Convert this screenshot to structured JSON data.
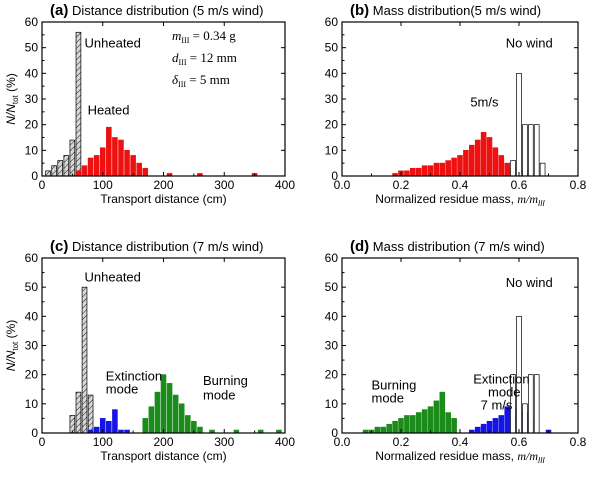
{
  "chart_data": [
    {
      "type": "bar",
      "panel_letter": "(a)",
      "title": "Distance distribution (5 m/s wind)",
      "xlabel": "Transport distance (cm)",
      "ylabel": "N/N_tot (%)",
      "ylabel_main": "N/N",
      "ylabel_sub": "tot",
      "ylabel_tail": " (%)",
      "xlim": [
        0,
        400
      ],
      "ylim": [
        0,
        60
      ],
      "xticks": [
        0,
        100,
        200,
        300,
        400
      ],
      "yticks": [
        0,
        10,
        20,
        30,
        40,
        50,
        60
      ],
      "bar_width": 8,
      "series": [
        {
          "name": "Unheated",
          "style": "hatched",
          "x": [
            10,
            20,
            30,
            40,
            50,
            60
          ],
          "values": [
            2,
            4,
            6,
            8,
            14,
            56
          ]
        },
        {
          "name": "Heated",
          "style": "red",
          "x": [
            60,
            70,
            80,
            90,
            100,
            110,
            120,
            130,
            140,
            150,
            160,
            170,
            210,
            260,
            350
          ],
          "values": [
            2,
            4,
            7,
            8,
            11,
            19,
            15,
            14,
            10,
            8,
            5,
            3,
            1,
            1,
            1
          ]
        }
      ],
      "annotations": [
        {
          "text": "Unheated",
          "x": 70,
          "y": 50,
          "color": "#000000"
        },
        {
          "text": "Heated",
          "x": 75,
          "y": 24,
          "color": "#e41b1b"
        }
      ],
      "params": [
        {
          "main": "m",
          "sub": "III",
          "value": " = 0.34 g"
        },
        {
          "main": "d",
          "sub": "III",
          "value": " = 12 mm"
        },
        {
          "main": "δ",
          "sub": "III",
          "value": " = 5 mm"
        }
      ]
    },
    {
      "type": "bar",
      "panel_letter": "(b)",
      "title": "Mass distribution(5 m/s wind)",
      "xlabel_main": "Normalized residue mass, ",
      "xlabel_italic": "m/m",
      "xlabel_sub": "III",
      "xlim": [
        0,
        0.8
      ],
      "ylim": [
        0,
        60
      ],
      "xticks": [
        0.0,
        0.2,
        0.4,
        0.6,
        0.8
      ],
      "yticks": [
        0,
        10,
        20,
        30,
        40,
        50,
        60
      ],
      "bar_width": 0.0165,
      "series": [
        {
          "name": "5m/s",
          "style": "red",
          "x": [
            0.18,
            0.2,
            0.22,
            0.24,
            0.26,
            0.28,
            0.3,
            0.32,
            0.34,
            0.36,
            0.38,
            0.4,
            0.42,
            0.44,
            0.46,
            0.48,
            0.5,
            0.52,
            0.54,
            0.56,
            0.58,
            0.62,
            0.64
          ],
          "values": [
            1,
            2,
            2,
            3,
            3,
            4,
            4,
            5,
            5,
            6,
            7,
            8,
            10,
            12,
            14,
            17,
            15,
            11,
            8,
            5,
            3,
            2,
            1
          ]
        },
        {
          "name": "No wind",
          "style": "white",
          "x": [
            0.58,
            0.6,
            0.62,
            0.64,
            0.66,
            0.68
          ],
          "values": [
            6,
            40,
            20,
            20,
            20,
            5
          ]
        }
      ],
      "annotations": [
        {
          "text": "No wind",
          "x": 0.555,
          "y": 50,
          "color": "#000000"
        },
        {
          "text": "5m/s",
          "x": 0.435,
          "y": 27,
          "color": "#e41b1b"
        }
      ]
    },
    {
      "type": "bar",
      "panel_letter": "(c)",
      "title": "Distance distribution (7 m/s wind)",
      "xlabel": "Transport distance (cm)",
      "ylabel_main": "N/N",
      "ylabel_sub": "tot",
      "ylabel_tail": " (%)",
      "xlim": [
        0,
        400
      ],
      "ylim": [
        0,
        60
      ],
      "xticks": [
        0,
        100,
        200,
        300,
        400
      ],
      "yticks": [
        0,
        10,
        20,
        30,
        40,
        50,
        60
      ],
      "bar_width": 8,
      "series": [
        {
          "name": "Unheated",
          "style": "hatched",
          "x": [
            50,
            60,
            70,
            80
          ],
          "values": [
            6,
            14,
            50,
            13
          ]
        },
        {
          "name": "Extinction mode",
          "style": "blue",
          "x": [
            80,
            90,
            100,
            110,
            120,
            130,
            140
          ],
          "values": [
            1,
            2,
            5,
            4,
            8,
            1,
            1
          ]
        },
        {
          "name": "Burning mode",
          "style": "green",
          "x": [
            170,
            180,
            190,
            200,
            210,
            220,
            230,
            240,
            250,
            260,
            280,
            320,
            360,
            390
          ],
          "values": [
            5,
            9,
            14,
            20,
            17,
            13,
            10,
            6,
            4,
            2,
            1,
            1,
            1,
            1
          ]
        }
      ],
      "annotations": [
        {
          "text": "Unheated",
          "x": 70,
          "y": 52,
          "color": "#000000"
        },
        {
          "text": "Extinction",
          "x": 105,
          "y": 18,
          "color": "#1414e6"
        },
        {
          "text": "mode",
          "x": 105,
          "y": 13.5,
          "color": "#1414e6"
        },
        {
          "text": "Burning",
          "x": 265,
          "y": 16.5,
          "color": "#1b8c1b"
        },
        {
          "text": "mode",
          "x": 265,
          "y": 11.5,
          "color": "#1b8c1b"
        }
      ]
    },
    {
      "type": "bar",
      "panel_letter": "(d)",
      "title": "Mass distribution (7 m/s wind)",
      "xlabel_main": "Normalized residue mass, ",
      "xlabel_italic": "m/m",
      "xlabel_sub": "III",
      "xlim": [
        0,
        0.8
      ],
      "ylim": [
        0,
        60
      ],
      "xticks": [
        0.0,
        0.2,
        0.4,
        0.6,
        0.8
      ],
      "yticks": [
        0,
        10,
        20,
        30,
        40,
        50,
        60
      ],
      "bar_width": 0.0165,
      "series": [
        {
          "name": "Burning mode",
          "style": "green",
          "x": [
            0.08,
            0.1,
            0.12,
            0.14,
            0.16,
            0.18,
            0.2,
            0.22,
            0.24,
            0.26,
            0.28,
            0.3,
            0.32,
            0.34,
            0.36,
            0.38
          ],
          "values": [
            1,
            1,
            2,
            2,
            3,
            4,
            5,
            6,
            6,
            7,
            8,
            9,
            11,
            14,
            7,
            5
          ]
        },
        {
          "name": "Extinction mode",
          "style": "blue",
          "x": [
            0.44,
            0.46,
            0.48,
            0.5,
            0.52,
            0.54,
            0.56,
            0.58,
            0.62,
            0.64,
            0.7
          ],
          "values": [
            1,
            2,
            3,
            4,
            5,
            6,
            9,
            8,
            7,
            5,
            1
          ]
        },
        {
          "name": "No wind",
          "style": "white",
          "x": [
            0.58,
            0.6,
            0.62,
            0.64,
            0.66
          ],
          "values": [
            20,
            40,
            10,
            20,
            20
          ]
        }
      ],
      "annotations": [
        {
          "text": "No wind",
          "x": 0.555,
          "y": 50,
          "color": "#000000"
        },
        {
          "text": "Extinction",
          "x": 0.445,
          "y": 17,
          "color": "#1414e6"
        },
        {
          "text": "mode",
          "x": 0.495,
          "y": 12.5,
          "color": "#1414e6"
        },
        {
          "text": "7 m/s",
          "x": 0.47,
          "y": 8,
          "color": "#1414e6"
        },
        {
          "text": "Burning",
          "x": 0.1,
          "y": 15,
          "color": "#1b8c1b"
        },
        {
          "text": "mode",
          "x": 0.1,
          "y": 10.5,
          "color": "#1b8c1b"
        }
      ]
    }
  ]
}
